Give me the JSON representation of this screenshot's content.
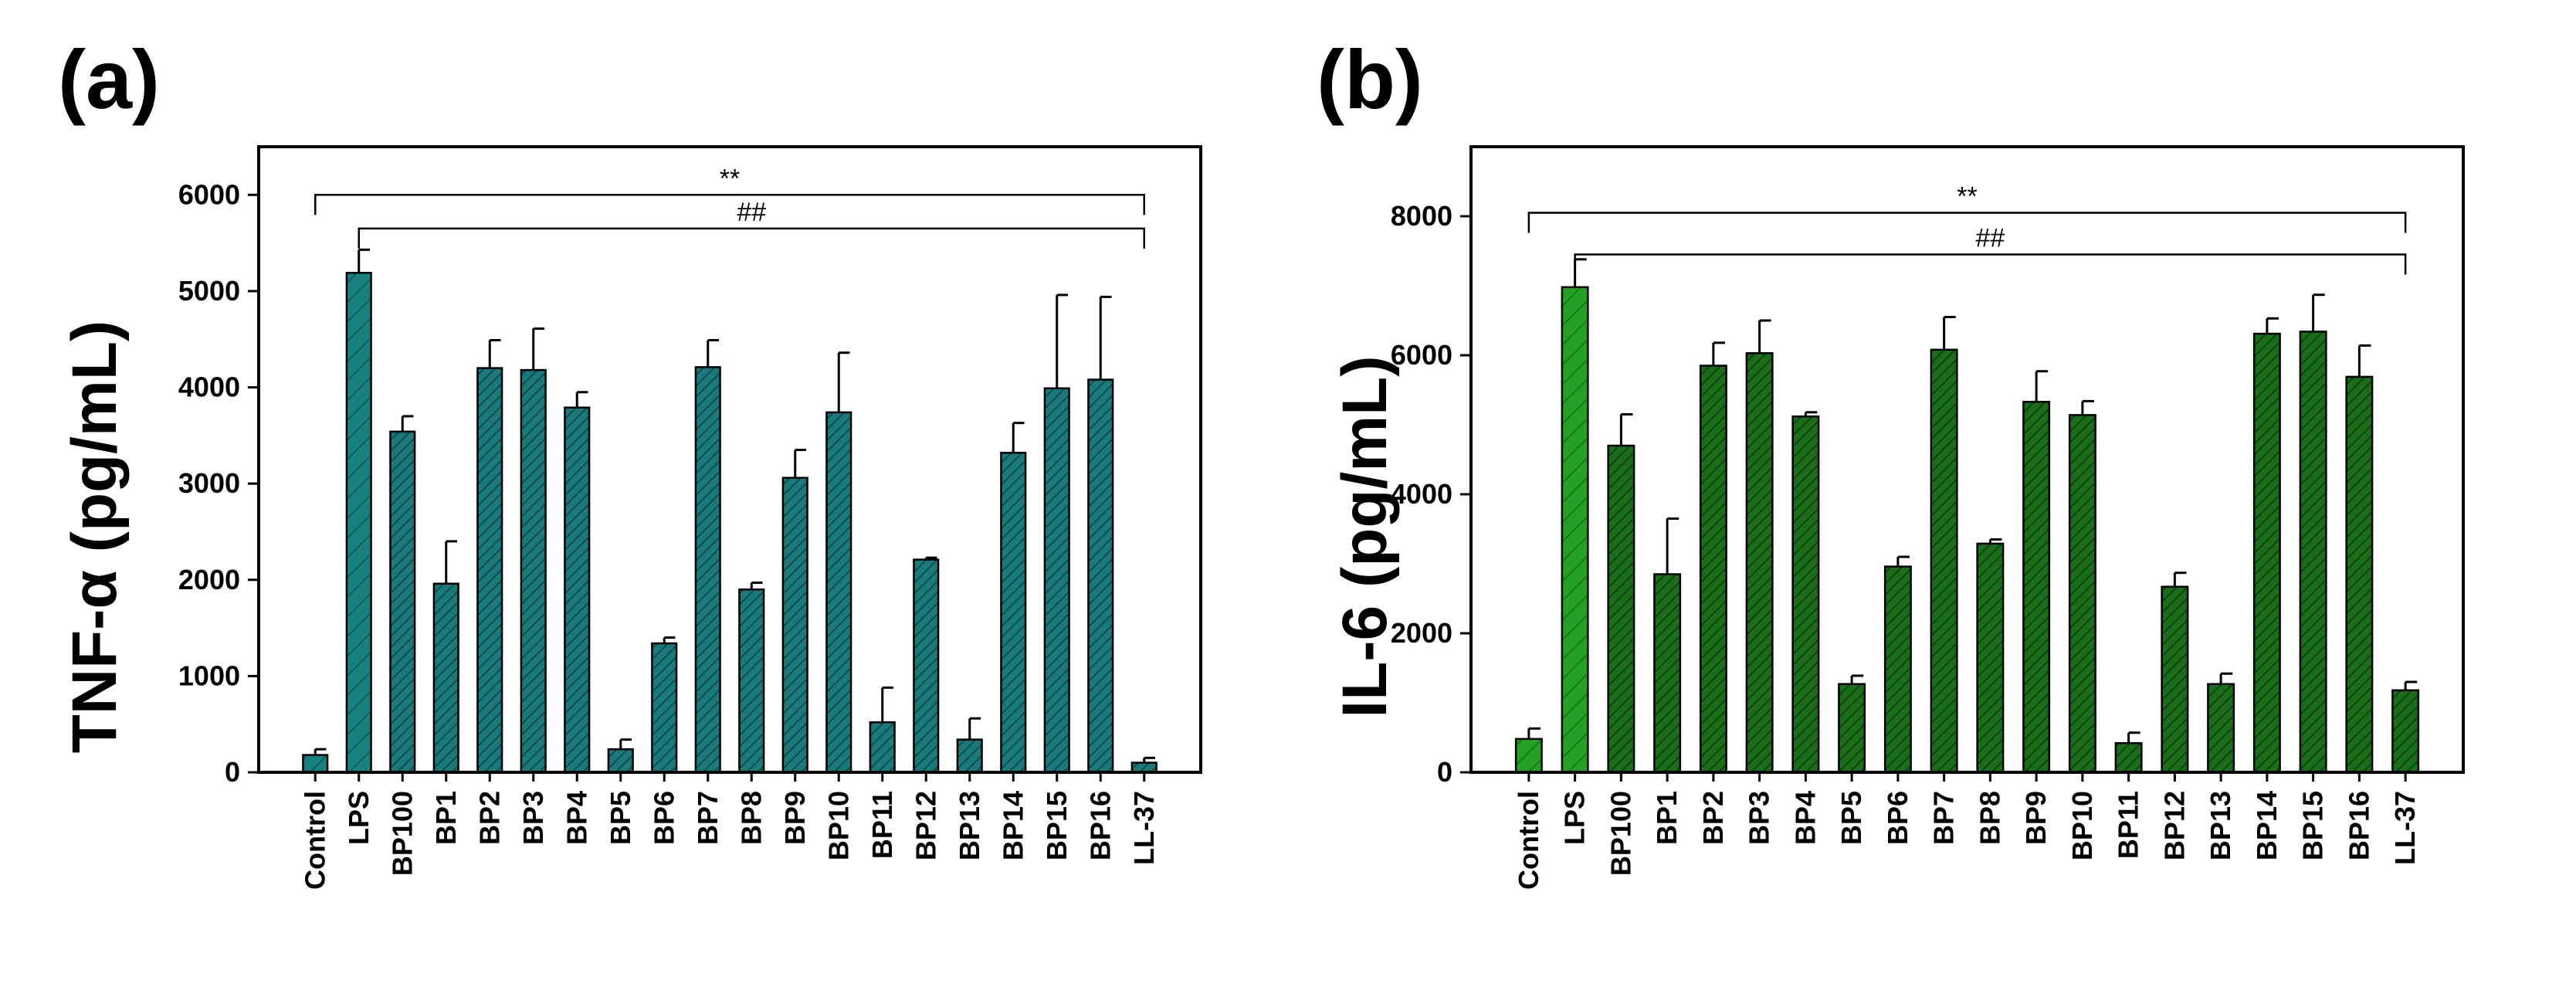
{
  "chart_data": [
    {
      "panel_label": "(a)",
      "type": "bar",
      "ylabel": "TNF-α (pg/mL)",
      "ylim": [
        0,
        6500
      ],
      "yticks": [
        0,
        1000,
        2000,
        3000,
        4000,
        5000,
        6000
      ],
      "categories": [
        "Control",
        "LPS",
        "BP100",
        "BP1",
        "BP2",
        "BP3",
        "BP4",
        "BP5",
        "BP6",
        "BP7",
        "BP8",
        "BP9",
        "BP10",
        "BP11",
        "BP12",
        "BP13",
        "BP14",
        "BP15",
        "BP16",
        "LL-37"
      ],
      "values": [
        180,
        5190,
        3540,
        1960,
        4200,
        4180,
        3790,
        240,
        1340,
        4210,
        1900,
        3060,
        3740,
        520,
        2210,
        340,
        3320,
        3990,
        4080,
        100
      ],
      "errors": [
        60,
        240,
        160,
        440,
        290,
        430,
        160,
        100,
        60,
        280,
        70,
        290,
        620,
        360,
        20,
        220,
        310,
        970,
        860,
        50
      ],
      "colors": {
        "control": "#18817f",
        "bars": "#1a7a7b",
        "hatch": "#0e4f50"
      },
      "significance": [
        {
          "label": "**",
          "from": "Control",
          "to": "LL-37",
          "y": 6000
        },
        {
          "label": "##",
          "from": "LPS",
          "to": "LL-37",
          "y": 5650
        }
      ]
    },
    {
      "panel_label": "(b)",
      "type": "bar",
      "ylabel": "IL-6 (pg/mL)",
      "ylim": [
        0,
        9000
      ],
      "yticks": [
        0,
        2000,
        4000,
        6000,
        8000
      ],
      "categories": [
        "Control",
        "LPS",
        "BP100",
        "BP1",
        "BP2",
        "BP3",
        "BP4",
        "BP5",
        "BP6",
        "BP7",
        "BP8",
        "BP9",
        "BP10",
        "BP11",
        "BP12",
        "BP13",
        "BP14",
        "BP15",
        "BP16",
        "LL-37"
      ],
      "values": [
        480,
        6980,
        4700,
        2850,
        5850,
        6030,
        5120,
        1270,
        2960,
        6080,
        3290,
        5330,
        5140,
        420,
        2670,
        1270,
        6310,
        6340,
        5690,
        1180
      ],
      "errors": [
        150,
        400,
        450,
        800,
        330,
        470,
        60,
        120,
        140,
        470,
        60,
        440,
        200,
        150,
        200,
        150,
        220,
        530,
        450,
        120
      ],
      "colors": {
        "control": "#1f8a1f",
        "bars": "#1a6e1a",
        "hatch": "#0d420d"
      },
      "significance": [
        {
          "label": "**",
          "from": "Control",
          "to": "LL-37",
          "y": 8050
        },
        {
          "label": "##",
          "from": "LPS",
          "to": "LL-37",
          "y": 7450
        }
      ]
    }
  ]
}
